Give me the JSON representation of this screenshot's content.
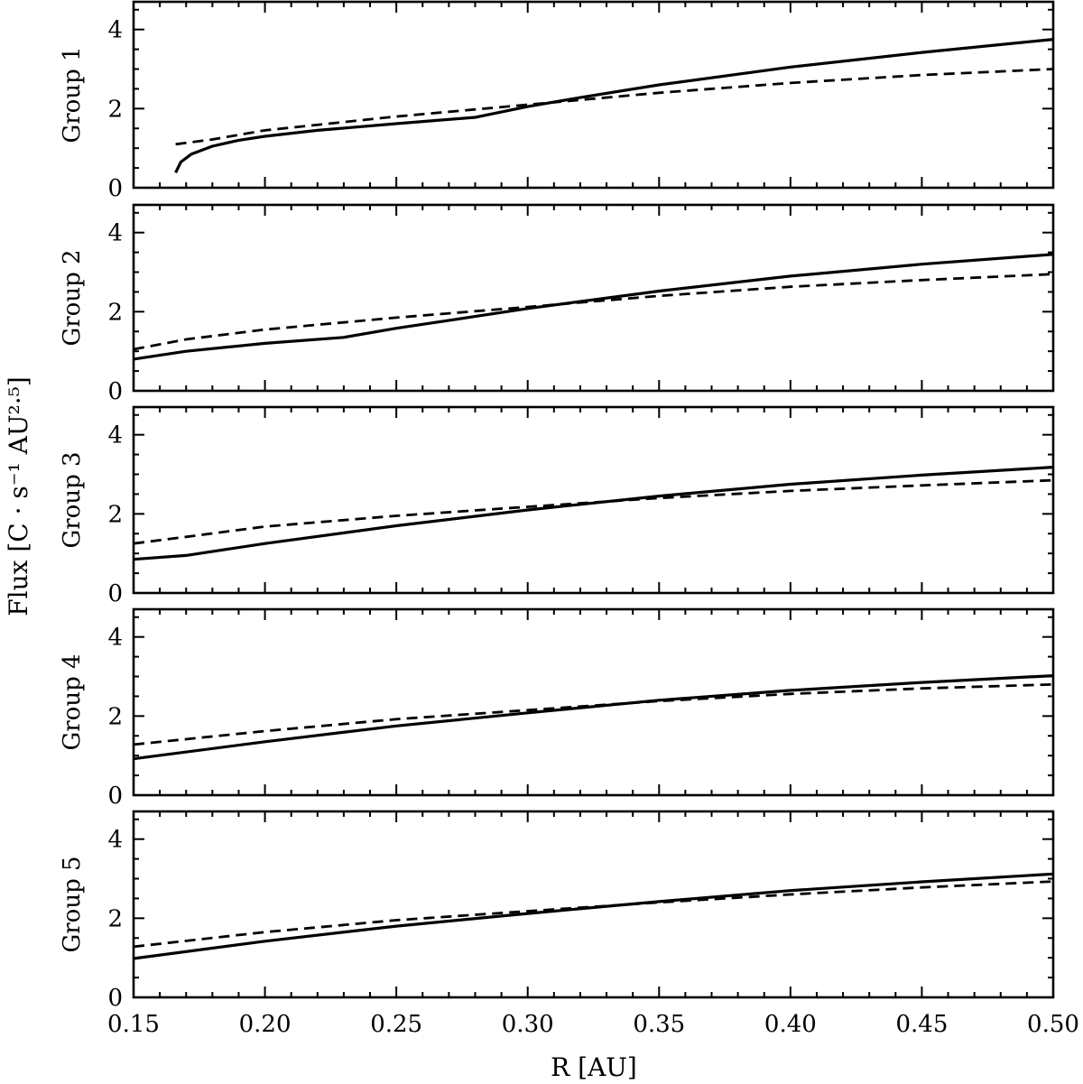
{
  "chart_data": [
    {
      "type": "line",
      "panel_label": "Group 1",
      "xlim": [
        0.15,
        0.5
      ],
      "ylim": [
        0,
        4.7
      ],
      "yticks": [
        "0",
        "2",
        "4"
      ],
      "series": [
        {
          "style": "solid",
          "x": [
            0.166,
            0.168,
            0.172,
            0.18,
            0.19,
            0.2,
            0.22,
            0.25,
            0.28,
            0.3,
            0.32,
            0.35,
            0.4,
            0.45,
            0.5
          ],
          "y": [
            0.38,
            0.65,
            0.85,
            1.05,
            1.2,
            1.3,
            1.45,
            1.62,
            1.78,
            2.05,
            2.28,
            2.6,
            3.05,
            3.42,
            3.75
          ]
        },
        {
          "style": "dashed",
          "x": [
            0.166,
            0.18,
            0.2,
            0.25,
            0.3,
            0.35,
            0.4,
            0.45,
            0.5
          ],
          "y": [
            1.1,
            1.22,
            1.45,
            1.8,
            2.1,
            2.4,
            2.65,
            2.85,
            3.0
          ]
        }
      ]
    },
    {
      "type": "line",
      "panel_label": "Group 2",
      "xlim": [
        0.15,
        0.5
      ],
      "ylim": [
        0,
        4.7
      ],
      "yticks": [
        "0",
        "2",
        "4"
      ],
      "series": [
        {
          "style": "solid",
          "x": [
            0.15,
            0.17,
            0.2,
            0.23,
            0.25,
            0.28,
            0.3,
            0.35,
            0.4,
            0.45,
            0.5
          ],
          "y": [
            0.8,
            1.0,
            1.2,
            1.35,
            1.58,
            1.88,
            2.08,
            2.52,
            2.9,
            3.2,
            3.45
          ]
        },
        {
          "style": "dashed",
          "x": [
            0.15,
            0.17,
            0.2,
            0.25,
            0.3,
            0.35,
            0.4,
            0.45,
            0.5
          ],
          "y": [
            1.05,
            1.3,
            1.55,
            1.85,
            2.12,
            2.4,
            2.63,
            2.8,
            2.95
          ]
        }
      ]
    },
    {
      "type": "line",
      "panel_label": "Group 3",
      "xlim": [
        0.15,
        0.5
      ],
      "ylim": [
        0,
        4.7
      ],
      "yticks": [
        "0",
        "2",
        "4"
      ],
      "series": [
        {
          "style": "solid",
          "x": [
            0.15,
            0.17,
            0.2,
            0.25,
            0.3,
            0.35,
            0.4,
            0.45,
            0.5
          ],
          "y": [
            0.85,
            0.95,
            1.25,
            1.7,
            2.1,
            2.45,
            2.75,
            2.98,
            3.18
          ]
        },
        {
          "style": "dashed",
          "x": [
            0.15,
            0.17,
            0.2,
            0.25,
            0.3,
            0.35,
            0.4,
            0.45,
            0.5
          ],
          "y": [
            1.25,
            1.42,
            1.68,
            1.95,
            2.18,
            2.4,
            2.58,
            2.72,
            2.85
          ]
        }
      ]
    },
    {
      "type": "line",
      "panel_label": "Group 4",
      "xlim": [
        0.15,
        0.5
      ],
      "ylim": [
        0,
        4.7
      ],
      "yticks": [
        "0",
        "2",
        "4"
      ],
      "series": [
        {
          "style": "solid",
          "x": [
            0.15,
            0.2,
            0.25,
            0.3,
            0.35,
            0.4,
            0.45,
            0.5
          ],
          "y": [
            0.92,
            1.35,
            1.75,
            2.08,
            2.4,
            2.65,
            2.85,
            3.02
          ]
        },
        {
          "style": "dashed",
          "x": [
            0.15,
            0.2,
            0.25,
            0.3,
            0.35,
            0.4,
            0.45,
            0.5
          ],
          "y": [
            1.28,
            1.62,
            1.92,
            2.15,
            2.38,
            2.56,
            2.7,
            2.8
          ]
        }
      ]
    },
    {
      "type": "line",
      "panel_label": "Group 5",
      "xlim": [
        0.15,
        0.5
      ],
      "ylim": [
        0,
        4.7
      ],
      "yticks": [
        "0",
        "2",
        "4"
      ],
      "series": [
        {
          "style": "solid",
          "x": [
            0.15,
            0.2,
            0.25,
            0.3,
            0.35,
            0.4,
            0.45,
            0.5
          ],
          "y": [
            0.98,
            1.42,
            1.8,
            2.12,
            2.42,
            2.7,
            2.92,
            3.12
          ]
        },
        {
          "style": "dashed",
          "x": [
            0.15,
            0.2,
            0.25,
            0.3,
            0.35,
            0.4,
            0.45,
            0.5
          ],
          "y": [
            1.28,
            1.65,
            1.95,
            2.18,
            2.4,
            2.6,
            2.78,
            2.93
          ]
        }
      ]
    }
  ],
  "axes": {
    "xticks": [
      "0.15",
      "0.20",
      "0.25",
      "0.30",
      "0.35",
      "0.40",
      "0.45",
      "0.50"
    ],
    "xlabel": "R [AU]",
    "ylabel": "Flux [C · s⁻¹ AU²·⁵]"
  }
}
